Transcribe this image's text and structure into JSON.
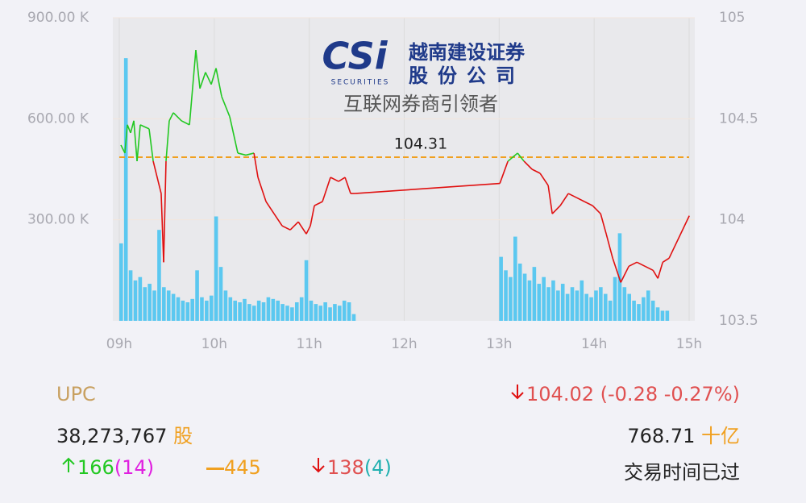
{
  "chart_data": {
    "type": "price-volume",
    "xlim": [
      9,
      15
    ],
    "xticks": [
      {
        "value": 9,
        "label": "09h"
      },
      {
        "value": 10,
        "label": "10h"
      },
      {
        "value": 11,
        "label": "11h"
      },
      {
        "value": 12,
        "label": "12h"
      },
      {
        "value": 13,
        "label": "13h"
      },
      {
        "value": 14,
        "label": "14h"
      },
      {
        "value": 15,
        "label": "15h"
      }
    ],
    "ylim": [
      0,
      900000
    ],
    "yticks": [
      {
        "value": 300000,
        "label": "300.00 K"
      },
      {
        "value": 600000,
        "label": "600.00 K"
      },
      {
        "value": 900000,
        "label": "900.00 K"
      }
    ],
    "y2lim": [
      103.5,
      105
    ],
    "y2ticks": [
      103.5,
      104,
      104.5,
      105
    ],
    "grid": true,
    "reference": 104.31,
    "reference_color": "#f0a020",
    "up_color": "#22c822",
    "down_color": "#e01010",
    "volume": {
      "color": "#5bc8f0",
      "x": [
        9.0,
        9.05,
        9.1,
        9.15,
        9.2,
        9.25,
        9.3,
        9.35,
        9.4,
        9.45,
        9.5,
        9.55,
        9.6,
        9.65,
        9.7,
        9.75,
        9.8,
        9.85,
        9.9,
        9.95,
        10.0,
        10.05,
        10.1,
        10.15,
        10.2,
        10.25,
        10.3,
        10.35,
        10.4,
        10.45,
        10.5,
        10.55,
        10.6,
        10.65,
        10.7,
        10.75,
        10.8,
        10.85,
        10.9,
        10.95,
        11.0,
        11.05,
        11.1,
        11.15,
        11.2,
        11.25,
        11.3,
        11.35,
        11.4,
        11.45,
        13.0,
        13.05,
        13.1,
        13.15,
        13.2,
        13.25,
        13.3,
        13.35,
        13.4,
        13.45,
        13.5,
        13.55,
        13.6,
        13.65,
        13.7,
        13.75,
        13.8,
        13.85,
        13.9,
        13.95,
        14.0,
        14.05,
        14.1,
        14.15,
        14.2,
        14.25,
        14.3,
        14.35,
        14.4,
        14.45,
        14.5,
        14.55,
        14.6,
        14.65,
        14.7,
        14.75
      ],
      "values": [
        230000,
        780000,
        150000,
        120000,
        130000,
        100000,
        110000,
        90000,
        270000,
        100000,
        90000,
        80000,
        70000,
        60000,
        55000,
        65000,
        150000,
        70000,
        60000,
        75000,
        310000,
        160000,
        90000,
        70000,
        60000,
        55000,
        65000,
        50000,
        45000,
        60000,
        55000,
        70000,
        65000,
        60000,
        50000,
        45000,
        40000,
        55000,
        70000,
        180000,
        60000,
        50000,
        45000,
        55000,
        40000,
        50000,
        45000,
        60000,
        55000,
        20000,
        190000,
        150000,
        130000,
        250000,
        170000,
        140000,
        120000,
        160000,
        110000,
        130000,
        100000,
        120000,
        90000,
        110000,
        80000,
        100000,
        90000,
        120000,
        80000,
        70000,
        90000,
        100000,
        80000,
        60000,
        130000,
        260000,
        100000,
        80000,
        60000,
        50000,
        70000,
        90000,
        60000,
        40000,
        30000,
        30000
      ]
    },
    "price": {
      "x": [
        9.017,
        9.059,
        9.085,
        9.119,
        9.153,
        9.187,
        9.221,
        9.314,
        9.357,
        9.441,
        9.467,
        9.492,
        9.526,
        9.569,
        9.654,
        9.739,
        9.806,
        9.849,
        9.908,
        9.968,
        10.019,
        10.078,
        10.163,
        10.248,
        10.333,
        10.418,
        10.46,
        10.545,
        10.63,
        10.715,
        10.8,
        10.885,
        10.969,
        11.012,
        11.054,
        11.139,
        11.224,
        11.309,
        11.377,
        11.436,
        11.479,
        13.007,
        13.092,
        13.194,
        13.261,
        13.346,
        13.431,
        13.516,
        13.559,
        13.643,
        13.728,
        13.813,
        13.898,
        13.983,
        14.068,
        14.127,
        14.195,
        14.28,
        14.365,
        14.45,
        14.535,
        14.62,
        14.671,
        14.722,
        14.789,
        15.002
      ],
      "values": [
        104.37,
        104.33,
        104.47,
        104.43,
        104.49,
        104.29,
        104.47,
        104.45,
        104.29,
        104.13,
        103.79,
        104.29,
        104.49,
        104.53,
        104.49,
        104.47,
        104.84,
        104.65,
        104.73,
        104.67,
        104.75,
        104.61,
        104.51,
        104.33,
        104.32,
        104.33,
        104.21,
        104.09,
        104.03,
        103.97,
        103.95,
        103.99,
        103.93,
        103.97,
        104.07,
        104.09,
        104.21,
        104.19,
        104.21,
        104.13,
        104.13,
        104.18,
        104.29,
        104.33,
        104.29,
        104.25,
        104.23,
        104.17,
        104.03,
        104.07,
        104.13,
        104.11,
        104.09,
        104.07,
        104.03,
        103.93,
        103.81,
        103.69,
        103.77,
        103.79,
        103.77,
        103.75,
        103.71,
        103.79,
        103.81,
        104.02
      ]
    }
  },
  "logo": {
    "mark": "CSi",
    "tag": "SECURITIES",
    "name1": "越南建设证券",
    "name2": "股份公司",
    "slogan": "互联网券商引领者"
  },
  "summary": {
    "symbol": "UPC",
    "price": "104.02",
    "change": "(-0.28 -0.27%)",
    "volume": "38,273,767",
    "volume_unit": "股",
    "value": "768.71",
    "value_unit": "十亿",
    "up": "166",
    "up_ceiling": "(14)",
    "flat": "445",
    "down": "138",
    "down_floor": "(4)",
    "status": "交易时间已过"
  }
}
